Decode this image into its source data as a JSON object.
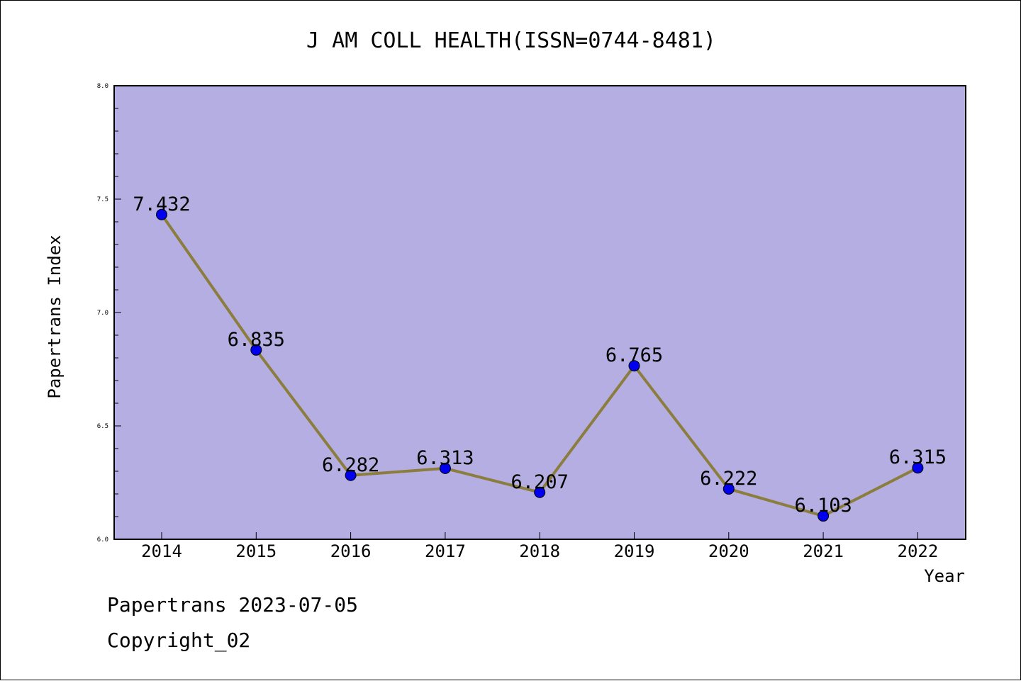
{
  "chart_data": {
    "type": "line",
    "title": "J AM COLL HEALTH(ISSN=0744-8481)",
    "xlabel": "Year",
    "ylabel": "Papertrans Index",
    "categories": [
      "2014",
      "2015",
      "2016",
      "2017",
      "2018",
      "2019",
      "2020",
      "2021",
      "2022"
    ],
    "values": [
      7.432,
      6.835,
      6.282,
      6.313,
      6.207,
      6.765,
      6.222,
      6.103,
      6.315
    ],
    "data_labels": [
      "7.432",
      "6.835",
      "6.282",
      "6.313",
      "6.207",
      "6.765",
      "6.222",
      "6.103",
      "6.315"
    ],
    "ylim": [
      6.0,
      8.0
    ],
    "yticks": [
      "6.0",
      "6.5",
      "7.0",
      "7.5",
      "8.0"
    ],
    "grid": false,
    "colors": {
      "plot_background": "#b4aee2",
      "line": "#8b7d3e",
      "marker": "#0000ee"
    }
  },
  "footer": {
    "date": "Papertrans 2023-07-05",
    "copyright": "Copyright_02"
  }
}
